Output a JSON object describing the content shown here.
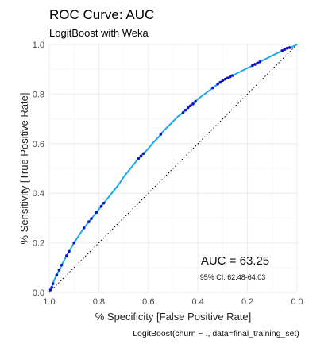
{
  "chart_data": {
    "type": "line",
    "title": "ROC Curve: AUC",
    "subtitle": "LogitBoost with Weka",
    "xlabel": "% Specificity [False Positive Rate]",
    "ylabel": "% Sensitivity [True Positive Rate]",
    "caption": "LogitBoost(churn ~ ., data=final_training_set)",
    "xlim": [
      1.0,
      0.0
    ],
    "ylim": [
      0.0,
      1.0
    ],
    "x_reversed": true,
    "x_ticks": [
      "1.0",
      "0.8",
      "0.6",
      "0.4",
      "0.2",
      "0.0"
    ],
    "y_ticks": [
      "0.0",
      "0.2",
      "0.4",
      "0.6",
      "0.8",
      "1.0"
    ],
    "grid": true,
    "annotations": {
      "auc": "AUC = 63.25",
      "ci": "95% CI: 62.48-64.03"
    },
    "series": [
      {
        "kind": "roc-curve",
        "color": "#1fa8f0",
        "point_color": "#1010cc",
        "x": [
          1.0,
          0.99,
          0.98,
          0.97,
          0.96,
          0.95,
          0.94,
          0.92,
          0.9,
          0.88,
          0.86,
          0.84,
          0.82,
          0.8,
          0.78,
          0.76,
          0.74,
          0.72,
          0.7,
          0.68,
          0.66,
          0.64,
          0.62,
          0.6,
          0.58,
          0.56,
          0.54,
          0.52,
          0.5,
          0.48,
          0.46,
          0.44,
          0.42,
          0.4,
          0.38,
          0.36,
          0.34,
          0.32,
          0.3,
          0.28,
          0.26,
          0.24,
          0.22,
          0.2,
          0.18,
          0.16,
          0.14,
          0.12,
          0.1,
          0.08,
          0.06,
          0.04,
          0.02,
          0.0
        ],
        "y": [
          0.0,
          0.02,
          0.05,
          0.07,
          0.09,
          0.11,
          0.13,
          0.165,
          0.2,
          0.23,
          0.26,
          0.285,
          0.31,
          0.335,
          0.36,
          0.385,
          0.41,
          0.435,
          0.465,
          0.49,
          0.515,
          0.54,
          0.56,
          0.58,
          0.605,
          0.625,
          0.65,
          0.67,
          0.69,
          0.71,
          0.725,
          0.745,
          0.76,
          0.78,
          0.795,
          0.81,
          0.825,
          0.84,
          0.855,
          0.865,
          0.875,
          0.885,
          0.895,
          0.905,
          0.915,
          0.925,
          0.935,
          0.945,
          0.955,
          0.965,
          0.975,
          0.985,
          0.99,
          1.0
        ]
      },
      {
        "kind": "reference-diagonal",
        "color": "#000000",
        "x": [
          1.0,
          0.0
        ],
        "y": [
          0.0,
          1.0
        ]
      }
    ],
    "highlight_x": [
      0.995,
      0.99,
      0.985,
      0.97,
      0.96,
      0.95,
      0.93,
      0.92,
      0.9,
      0.86,
      0.84,
      0.83,
      0.81,
      0.79,
      0.78,
      0.64,
      0.63,
      0.62,
      0.55,
      0.46,
      0.45,
      0.44,
      0.43,
      0.42,
      0.41,
      0.34,
      0.32,
      0.31,
      0.3,
      0.29,
      0.28,
      0.27,
      0.26,
      0.18,
      0.17,
      0.16,
      0.15,
      0.06,
      0.05,
      0.04,
      0.03
    ]
  }
}
